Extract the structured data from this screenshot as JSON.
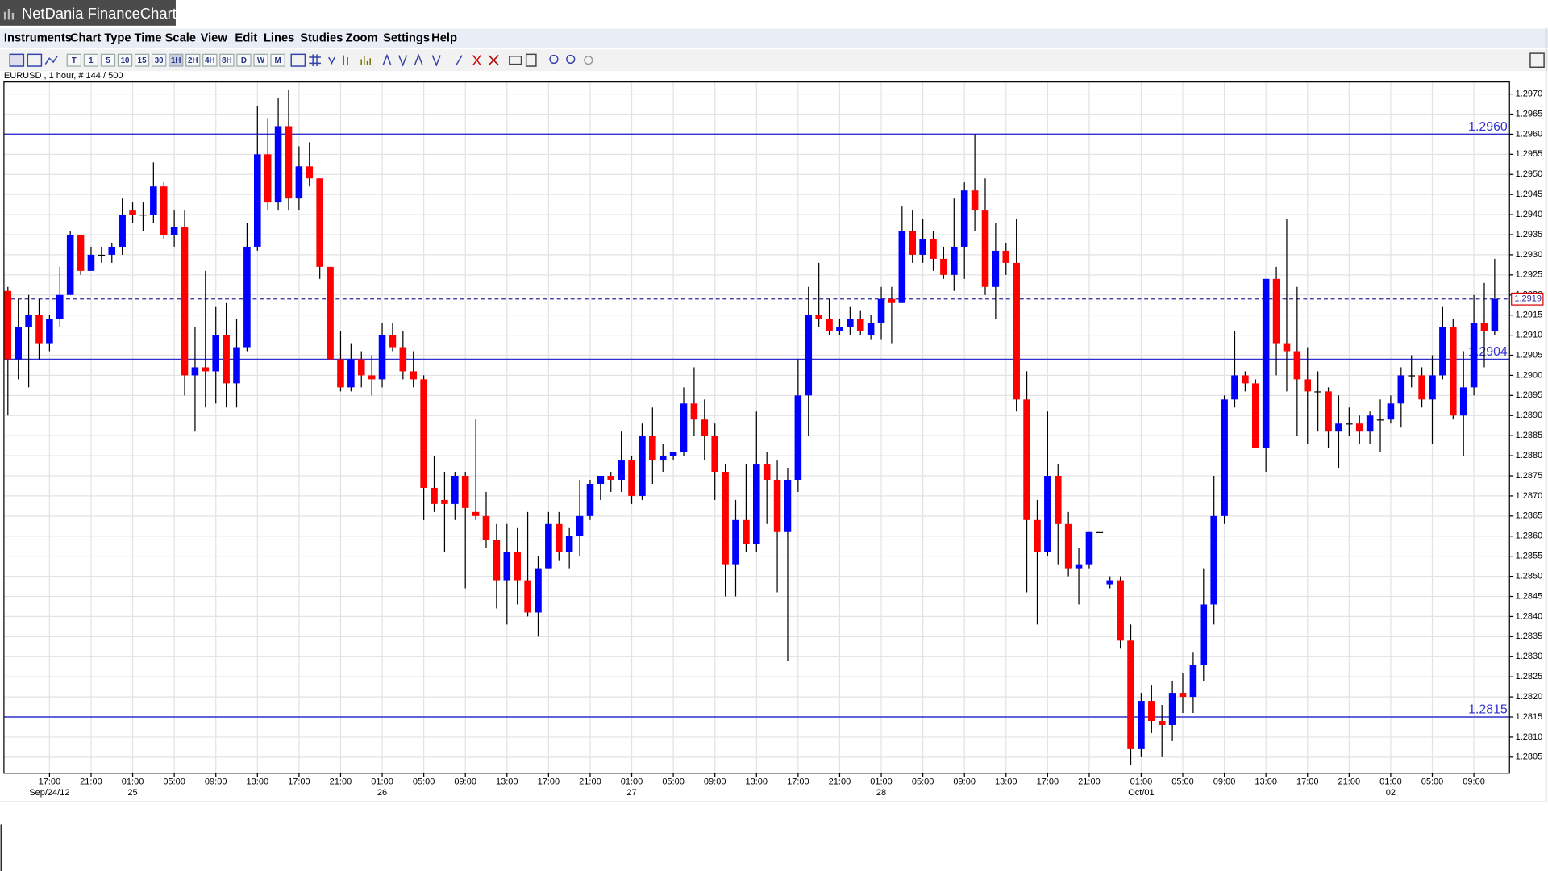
{
  "ui": {
    "window_title": "NetDania FinanceChart",
    "menu": [
      "Instruments",
      "Chart Type",
      "Time Scale",
      "View",
      "Edit",
      "Lines",
      "Studies",
      "Zoom",
      "Settings",
      "Help"
    ],
    "timeframes": [
      "T",
      "1",
      "5",
      "10",
      "15",
      "30",
      "1H",
      "2H",
      "4H",
      "8H",
      "D",
      "W",
      "M"
    ],
    "info": "EURUSD , 1 hour, # 144 / 500"
  },
  "chart_data": {
    "type": "candlestick",
    "up_color": "#0000ff",
    "down_color": "#ff0000",
    "grid": true,
    "categories": [
      null,
      null,
      null,
      null,
      "17:00",
      null,
      null,
      null,
      "21:00",
      null,
      null,
      null,
      "01:00",
      null,
      null,
      null,
      "05:00",
      null,
      null,
      null,
      "09:00",
      null,
      null,
      null,
      "13:00",
      null,
      null,
      null,
      "17:00",
      null,
      null,
      null,
      "21:00",
      null,
      null,
      null,
      "01:00",
      null,
      null,
      null,
      "05:00",
      null,
      null,
      null,
      "09:00",
      null,
      null,
      null,
      "13:00",
      null,
      null,
      null,
      "17:00",
      null,
      null,
      null,
      "21:00",
      null,
      null,
      null,
      "01:00",
      null,
      null,
      null,
      "05:00",
      null,
      null,
      null,
      "09:00",
      null,
      null,
      null,
      "13:00",
      null,
      null,
      null,
      "17:00",
      null,
      null,
      null,
      "21:00",
      null,
      null,
      null,
      "01:00",
      null,
      null,
      null,
      "05:00",
      null,
      null,
      null,
      "09:00",
      null,
      null,
      null,
      "13:00",
      null,
      null,
      null,
      "17:00",
      null,
      null,
      null,
      "21:00",
      null,
      null,
      null,
      null,
      "01:00",
      null,
      null,
      null,
      "05:00",
      null,
      null,
      null,
      "09:00",
      null,
      null,
      null,
      "13:00",
      null,
      null,
      null,
      "17:00",
      null,
      null,
      null,
      "21:00",
      null,
      null,
      null,
      "01:00",
      null,
      null,
      null,
      "05:00",
      null,
      null,
      null,
      "09:00",
      null,
      null
    ],
    "dates": [
      null,
      null,
      null,
      null,
      "Sep/24/12",
      null,
      null,
      null,
      null,
      null,
      null,
      null,
      "25",
      null,
      null,
      null,
      null,
      null,
      null,
      null,
      null,
      null,
      null,
      null,
      null,
      null,
      null,
      null,
      null,
      null,
      null,
      null,
      null,
      null,
      null,
      null,
      "26",
      null,
      null,
      null,
      null,
      null,
      null,
      null,
      null,
      null,
      null,
      null,
      null,
      null,
      null,
      null,
      null,
      null,
      null,
      null,
      null,
      null,
      null,
      null,
      "27",
      null,
      null,
      null,
      null,
      null,
      null,
      null,
      null,
      null,
      null,
      null,
      null,
      null,
      null,
      null,
      null,
      null,
      null,
      null,
      null,
      null,
      null,
      null,
      "28",
      null,
      null,
      null,
      null,
      null,
      null,
      null,
      null,
      null,
      null,
      null,
      null,
      null,
      null,
      null,
      null,
      null,
      null,
      null,
      null,
      null,
      null,
      null,
      null,
      "Oct/01",
      null,
      null,
      null,
      null,
      null,
      null,
      null,
      null,
      null,
      null,
      null,
      null,
      null,
      null,
      null,
      null,
      null,
      null,
      null,
      null,
      null,
      null,
      null,
      "02",
      null,
      null,
      null,
      null,
      null,
      null,
      null,
      null,
      null,
      null
    ],
    "open": [
      1.2921,
      1.2904,
      1.2912,
      1.2915,
      1.2908,
      1.2914,
      1.292,
      1.2935,
      1.2926,
      1.293,
      1.293,
      1.2932,
      1.2941,
      1.294,
      1.294,
      1.2947,
      1.2935,
      1.2937,
      1.29,
      1.2902,
      1.2901,
      1.291,
      1.2898,
      1.2907,
      1.2932,
      1.2955,
      1.2943,
      1.2962,
      1.2944,
      1.2952,
      1.2949,
      1.2927,
      1.2904,
      1.2897,
      1.2904,
      1.29,
      1.2899,
      1.291,
      1.2907,
      1.2901,
      1.2899,
      1.2872,
      1.2869,
      1.2868,
      1.2875,
      1.2866,
      1.2865,
      1.2859,
      1.2849,
      1.2856,
      1.2849,
      1.2841,
      1.2852,
      1.2863,
      1.2856,
      1.286,
      1.2865,
      1.2873,
      1.2875,
      1.2874,
      1.2879,
      1.287,
      1.2885,
      1.2879,
      1.288,
      1.2881,
      1.2893,
      1.2889,
      1.2885,
      1.2876,
      1.2853,
      1.2864,
      1.2858,
      1.2878,
      1.2874,
      1.2861,
      1.2874,
      1.2895,
      1.2915,
      1.2914,
      1.2911,
      1.2912,
      1.2914,
      1.291,
      1.2913,
      1.2919,
      1.2918,
      1.2936,
      1.293,
      1.2934,
      1.2929,
      1.2925,
      1.2932,
      1.2946,
      1.2941,
      1.2922,
      1.2931,
      1.2928,
      1.2894,
      1.2864,
      1.2856,
      1.2875,
      1.2863,
      1.2852,
      1.2853,
      1.2861,
      1.2848,
      1.2849,
      1.2834,
      1.2807,
      1.2819,
      1.2814,
      1.2813,
      1.2821,
      1.282,
      1.2828,
      1.2843,
      1.2865,
      1.2894,
      1.29,
      1.2898,
      1.2882,
      1.2924,
      1.2908,
      1.2906,
      1.2899,
      1.2896,
      1.2896,
      1.2886,
      1.2888,
      1.2888,
      1.2886,
      1.2889,
      1.2889,
      1.2893,
      1.29,
      1.29,
      1.2894,
      1.29,
      1.2912,
      1.289,
      1.2897,
      1.2913,
      1.2911
    ],
    "high": [
      1.2922,
      1.2919,
      1.292,
      1.2919,
      1.2915,
      1.2927,
      1.2936,
      1.2935,
      1.2932,
      1.2932,
      1.2933,
      1.2944,
      1.2943,
      1.2943,
      1.2953,
      1.2948,
      1.2941,
      1.2941,
      1.2912,
      1.2926,
      1.2917,
      1.2918,
      1.2914,
      1.2938,
      1.2967,
      1.2964,
      1.2969,
      1.2971,
      1.2957,
      1.2958,
      1.2949,
      1.2927,
      1.2911,
      1.2908,
      1.2906,
      1.2905,
      1.2913,
      1.2913,
      1.2911,
      1.2906,
      1.29,
      1.288,
      1.2876,
      1.2876,
      1.2876,
      1.2889,
      1.2871,
      1.2863,
      1.2863,
      1.2862,
      1.2866,
      1.2855,
      1.2866,
      1.2866,
      1.2862,
      1.2874,
      1.2874,
      1.2875,
      1.2876,
      1.2886,
      1.288,
      1.2888,
      1.2892,
      1.2883,
      1.2881,
      1.2897,
      1.2902,
      1.2894,
      1.2888,
      1.2878,
      1.2869,
      1.2878,
      1.2891,
      1.2881,
      1.2879,
      1.2877,
      1.2904,
      1.2922,
      1.2928,
      1.2919,
      1.2914,
      1.2917,
      1.2916,
      1.2915,
      1.2922,
      1.2922,
      1.2942,
      1.2941,
      1.2939,
      1.2936,
      1.2932,
      1.2944,
      1.2948,
      1.296,
      1.2949,
      1.2938,
      1.2933,
      1.2939,
      1.2901,
      1.2869,
      1.2891,
      1.2878,
      1.2866,
      1.2857,
      1.2861,
      1.2861,
      1.285,
      1.285,
      1.2838,
      1.2821,
      1.2823,
      1.2818,
      1.2824,
      1.2826,
      1.2831,
      1.2852,
      1.2875,
      1.2895,
      1.2911,
      1.2901,
      1.2899,
      1.2924,
      1.2927,
      1.2939,
      1.2922,
      1.2907,
      1.2901,
      1.2897,
      1.2895,
      1.2892,
      1.289,
      1.2891,
      1.2894,
      1.2895,
      1.2902,
      1.2905,
      1.2902,
      1.2905,
      1.2917,
      1.2914,
      1.2906,
      1.292,
      1.2923,
      1.2929
    ],
    "low": [
      1.289,
      1.2899,
      1.2897,
      1.2904,
      1.2906,
      1.2912,
      1.292,
      1.2925,
      1.2926,
      1.2928,
      1.2928,
      1.293,
      1.2938,
      1.2936,
      1.2938,
      1.2934,
      1.2932,
      1.2895,
      1.2886,
      1.2892,
      1.2893,
      1.2892,
      1.2892,
      1.2906,
      1.2931,
      1.2941,
      1.2941,
      1.2941,
      1.2941,
      1.2947,
      1.2924,
      1.2904,
      1.2896,
      1.2896,
      1.2897,
      1.2895,
      1.2897,
      1.2906,
      1.2899,
      1.2897,
      1.2864,
      1.2866,
      1.2856,
      1.2864,
      1.2847,
      1.2864,
      1.2857,
      1.2842,
      1.2838,
      1.2843,
      1.284,
      1.2835,
      1.2852,
      1.2854,
      1.2852,
      1.2855,
      1.2864,
      1.2869,
      1.2871,
      1.2871,
      1.2868,
      1.2869,
      1.2873,
      1.2876,
      1.2879,
      1.288,
      1.2885,
      1.2879,
      1.2869,
      1.2845,
      1.2845,
      1.2856,
      1.2856,
      1.2863,
      1.2846,
      1.2829,
      1.2871,
      1.2885,
      1.2912,
      1.291,
      1.291,
      1.291,
      1.291,
      1.2909,
      1.2909,
      1.2908,
      1.2918,
      1.2928,
      1.2928,
      1.2926,
      1.2924,
      1.2921,
      1.2924,
      1.2936,
      1.292,
      1.2914,
      1.2925,
      1.2891,
      1.2846,
      1.2838,
      1.2855,
      1.2853,
      1.285,
      1.2843,
      1.2852,
      1.2861,
      1.2847,
      1.2832,
      1.2803,
      1.2805,
      1.2811,
      1.2805,
      1.2809,
      1.2816,
      1.2816,
      1.2824,
      1.2838,
      1.2863,
      1.2892,
      1.2896,
      1.2882,
      1.2876,
      1.29,
      1.2896,
      1.2885,
      1.2883,
      1.2886,
      1.2882,
      1.2877,
      1.2885,
      1.2883,
      1.2883,
      1.2881,
      1.2888,
      1.2887,
      1.2897,
      1.2892,
      1.2883,
      1.2899,
      1.2889,
      1.288,
      1.2895,
      1.2902,
      1.291
    ],
    "close": [
      1.2904,
      1.2912,
      1.2915,
      1.2908,
      1.2914,
      1.292,
      1.2935,
      1.2926,
      1.293,
      1.293,
      1.2932,
      1.294,
      1.294,
      1.294,
      1.2947,
      1.2935,
      1.2937,
      1.29,
      1.2902,
      1.2901,
      1.291,
      1.2898,
      1.2907,
      1.2932,
      1.2955,
      1.2943,
      1.2962,
      1.2944,
      1.2952,
      1.2949,
      1.2927,
      1.2904,
      1.2897,
      1.2904,
      1.29,
      1.2899,
      1.291,
      1.2907,
      1.2901,
      1.2899,
      1.2872,
      1.2868,
      1.2868,
      1.2875,
      1.2867,
      1.2865,
      1.2859,
      1.2849,
      1.2856,
      1.2849,
      1.2841,
      1.2852,
      1.2863,
      1.2856,
      1.286,
      1.2865,
      1.2873,
      1.2875,
      1.2874,
      1.2879,
      1.287,
      1.2885,
      1.2879,
      1.288,
      1.2881,
      1.2893,
      1.2889,
      1.2885,
      1.2876,
      1.2853,
      1.2864,
      1.2858,
      1.2878,
      1.2874,
      1.2861,
      1.2874,
      1.2895,
      1.2915,
      1.2914,
      1.2911,
      1.2912,
      1.2914,
      1.2911,
      1.2913,
      1.2919,
      1.2918,
      1.2936,
      1.293,
      1.2934,
      1.2929,
      1.2925,
      1.2932,
      1.2946,
      1.2941,
      1.2922,
      1.2931,
      1.2928,
      1.2894,
      1.2864,
      1.2856,
      1.2875,
      1.2863,
      1.2852,
      1.2853,
      1.2861,
      1.2861,
      1.2849,
      1.2834,
      1.2807,
      1.2819,
      1.2814,
      1.2813,
      1.2821,
      1.282,
      1.2828,
      1.2843,
      1.2865,
      1.2894,
      1.29,
      1.2898,
      1.2882,
      1.2924,
      1.2908,
      1.2906,
      1.2899,
      1.2896,
      1.2896,
      1.2886,
      1.2888,
      1.2888,
      1.2886,
      1.289,
      1.2889,
      1.2893,
      1.29,
      1.29,
      1.2894,
      1.29,
      1.2912,
      1.289,
      1.2897,
      1.2913,
      1.2911,
      1.2919
    ],
    "ylim": [
      1.2801,
      1.2973
    ],
    "yticks": [
      1.2805,
      {
        "value": 1.281,
        "label": "1.2810"
      },
      1.2815,
      {
        "value": 1.282,
        "label": "1.2820"
      },
      1.2825,
      {
        "value": 1.283,
        "label": "1.2830"
      },
      1.2835,
      {
        "value": 1.284,
        "label": "1.2840"
      },
      1.2845,
      {
        "value": 1.285,
        "label": "1.2850"
      },
      1.2855,
      {
        "value": 1.286,
        "label": "1.2860"
      },
      1.2865,
      {
        "value": 1.287,
        "label": "1.2870"
      },
      1.2875,
      {
        "value": 1.288,
        "label": "1.2880"
      },
      1.2885,
      {
        "value": 1.289,
        "label": "1.2890"
      },
      1.2895,
      {
        "value": 1.29,
        "label": "1.2900"
      },
      1.2905,
      {
        "value": 1.291,
        "label": "1.2910"
      },
      1.2915,
      {
        "value": 1.292,
        "label": "1.2920"
      },
      1.2925,
      {
        "value": 1.293,
        "label": "1.2930"
      },
      1.2935,
      {
        "value": 1.294,
        "label": "1.2940"
      },
      1.2945,
      {
        "value": 1.295,
        "label": "1.2950"
      },
      1.2955,
      {
        "value": 1.296,
        "label": "1.2960"
      },
      1.2965,
      {
        "value": 1.297,
        "label": "1.2970"
      }
    ],
    "hlines": [
      {
        "value": 1.296,
        "label": "1.2960"
      },
      {
        "value": 1.2904,
        "label": "1.2904"
      },
      {
        "value": 1.2815,
        "label": "1.2815"
      }
    ],
    "hline_color": "#3030d0",
    "last_price": {
      "value": 1.2919,
      "label": "1.2919"
    }
  }
}
